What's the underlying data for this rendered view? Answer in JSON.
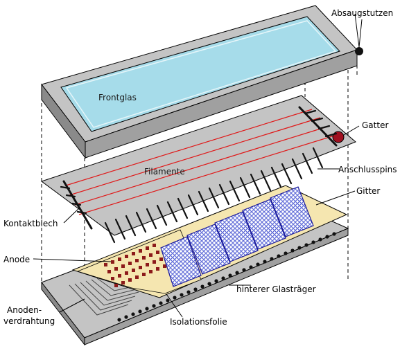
{
  "labels": {
    "absaugstutzen": "Absaugstutzen",
    "frontglas": "Frontglas",
    "gatter": "Gatter",
    "filamente": "Filamente",
    "anschlusspins": "Anschlusspins",
    "gitter": "Gitter",
    "kontaktblech": "Kontaktblech",
    "anode": "Anode",
    "hinterer_glastraeger": "hinterer Glasträger",
    "anoden_line1": "Anoden-",
    "anoden_line2": "verdrahtung",
    "isolationsfolie": "Isolationsfolie"
  },
  "colors": {
    "glass_frame": "#c0c0c0",
    "glass_side": "#808080",
    "front_glass_fill": "#a6dcea",
    "plate_top": "#c8c8c8",
    "filament": "#e01818",
    "getter": "#a01020",
    "anode_foil": "#f5e6b0",
    "anode_dot": "#8c1a1a",
    "grid_mesh": "#2020c0",
    "pin": "#1a1a1a"
  }
}
